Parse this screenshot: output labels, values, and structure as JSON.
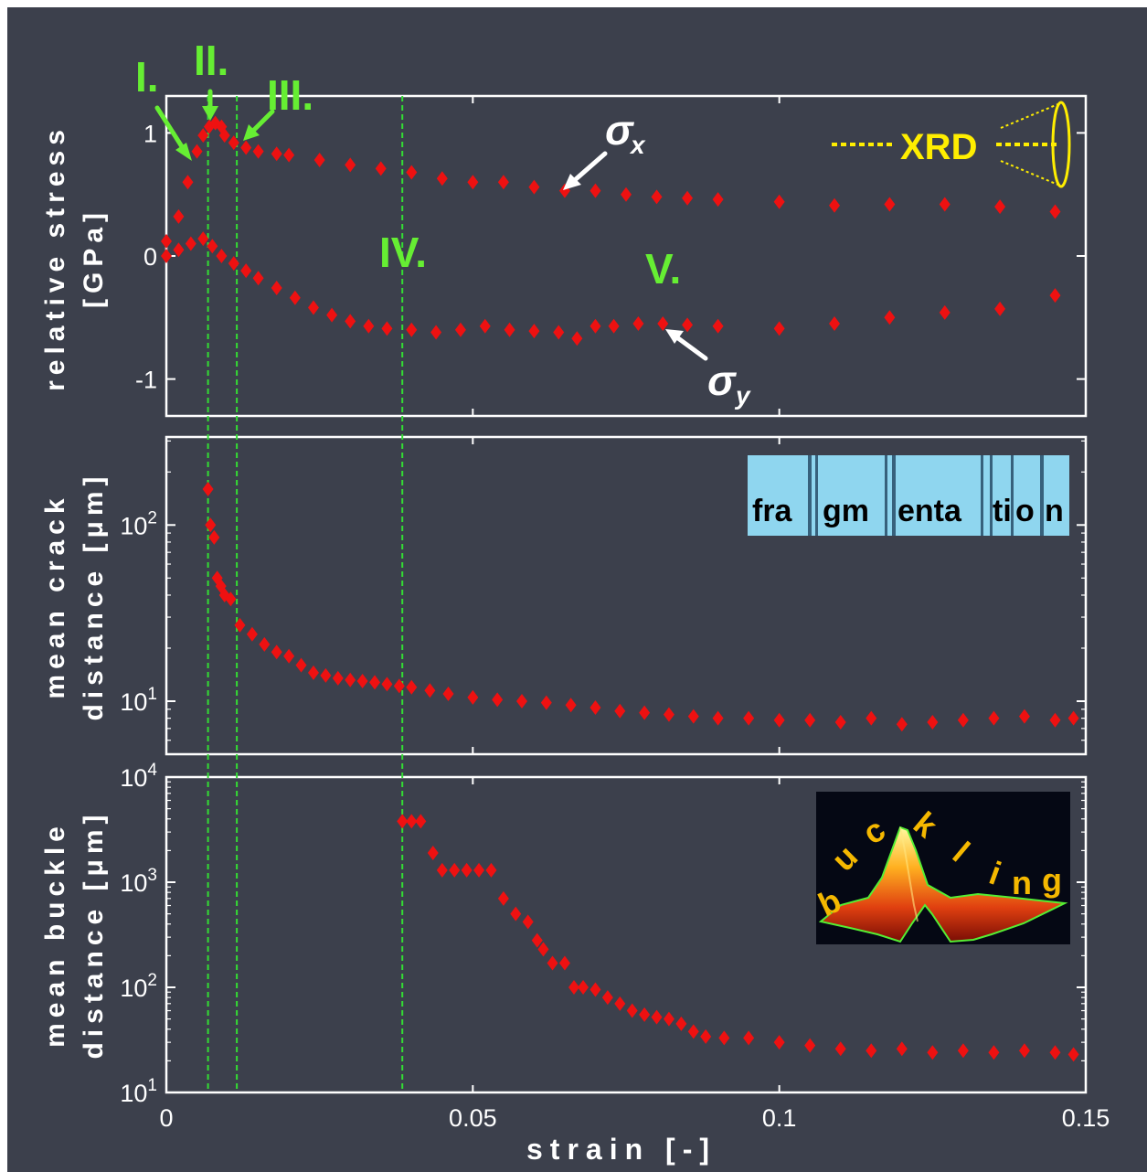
{
  "colors": {
    "background": "#3c404c",
    "frame": "#ffffff",
    "marker": "#ee1111",
    "guide": "#33dd33",
    "roman": "#66ee33",
    "xrd": "#ffee00",
    "frag_inset": "#8fd6ef",
    "buckling_text": "#f5b800"
  },
  "chart_data": [
    {
      "type": "scatter",
      "panel": "stress",
      "ylabel": [
        "relative stress",
        "[GPa]"
      ],
      "ylim": [
        -1.3,
        1.3
      ],
      "yticks": [
        {
          "v": 1,
          "t": "1"
        },
        {
          "v": 0,
          "t": "0"
        },
        {
          "v": -1,
          "t": "-1"
        }
      ],
      "annotations": {
        "sigma_x": "σ",
        "sigma_x_sub": "x",
        "sigma_y": "σ",
        "sigma_y_sub": "y",
        "xrd": "XRD"
      },
      "series": [
        {
          "key": "sigma_x",
          "x": [
            0.0,
            0.002,
            0.0035,
            0.005,
            0.006,
            0.007,
            0.008,
            0.009,
            0.0095,
            0.011,
            0.013,
            0.015,
            0.018,
            0.02,
            0.025,
            0.03,
            0.035,
            0.04,
            0.045,
            0.05,
            0.055,
            0.06,
            0.065,
            0.07,
            0.075,
            0.08,
            0.085,
            0.09,
            0.1,
            0.109,
            0.118,
            0.127,
            0.136,
            0.145
          ],
          "y": [
            0.12,
            0.32,
            0.6,
            0.85,
            0.98,
            1.05,
            1.08,
            1.05,
            0.98,
            0.92,
            0.88,
            0.85,
            0.83,
            0.82,
            0.78,
            0.74,
            0.71,
            0.68,
            0.63,
            0.6,
            0.6,
            0.56,
            0.53,
            0.53,
            0.5,
            0.48,
            0.47,
            0.46,
            0.44,
            0.41,
            0.42,
            0.42,
            0.4,
            0.36
          ]
        },
        {
          "key": "sigma_y",
          "x": [
            0.0,
            0.002,
            0.004,
            0.006,
            0.0075,
            0.009,
            0.011,
            0.013,
            0.015,
            0.018,
            0.021,
            0.024,
            0.027,
            0.03,
            0.033,
            0.036,
            0.04,
            0.044,
            0.048,
            0.052,
            0.056,
            0.06,
            0.064,
            0.067,
            0.07,
            0.073,
            0.077,
            0.081,
            0.085,
            0.09,
            0.1,
            0.109,
            0.118,
            0.127,
            0.136,
            0.145
          ],
          "y": [
            0.0,
            0.05,
            0.1,
            0.14,
            0.08,
            0.0,
            -0.06,
            -0.12,
            -0.18,
            -0.26,
            -0.34,
            -0.42,
            -0.48,
            -0.53,
            -0.57,
            -0.59,
            -0.6,
            -0.62,
            -0.6,
            -0.57,
            -0.6,
            -0.61,
            -0.62,
            -0.67,
            -0.57,
            -0.57,
            -0.55,
            -0.55,
            -0.56,
            -0.57,
            -0.59,
            -0.55,
            -0.5,
            -0.46,
            -0.43,
            -0.32
          ]
        }
      ]
    },
    {
      "type": "scatter",
      "panel": "crack",
      "ylabel": [
        "mean crack",
        "distance [μm]"
      ],
      "yscale": "log",
      "ylim": [
        5,
        316
      ],
      "yticks": [
        {
          "v": 100,
          "b": "10",
          "e": "2"
        },
        {
          "v": 10,
          "b": "10",
          "e": "1"
        }
      ],
      "inset_words": [
        "fra",
        "gm",
        "enta",
        "ti",
        "o",
        "n"
      ],
      "x": [
        0.0068,
        0.0072,
        0.0078,
        0.0083,
        0.0089,
        0.0095,
        0.0105,
        0.012,
        0.014,
        0.016,
        0.018,
        0.02,
        0.022,
        0.024,
        0.026,
        0.028,
        0.03,
        0.032,
        0.034,
        0.036,
        0.038,
        0.04,
        0.043,
        0.046,
        0.05,
        0.054,
        0.058,
        0.062,
        0.066,
        0.07,
        0.074,
        0.078,
        0.082,
        0.086,
        0.09,
        0.095,
        0.1,
        0.105,
        0.11,
        0.115,
        0.12,
        0.125,
        0.13,
        0.135,
        0.14,
        0.145,
        0.148
      ],
      "y": [
        160,
        100,
        85,
        50,
        45,
        40,
        38,
        27,
        24,
        21,
        19,
        18,
        16,
        14.5,
        14,
        13.5,
        13.2,
        13,
        12.8,
        12.5,
        12.2,
        12,
        11.5,
        11,
        10.5,
        10.2,
        10,
        9.8,
        9.5,
        9.2,
        8.8,
        8.6,
        8.4,
        8.2,
        8.0,
        8.0,
        7.8,
        7.8,
        7.6,
        8.0,
        7.4,
        7.6,
        7.8,
        8.0,
        8.2,
        7.8,
        8.0
      ]
    },
    {
      "type": "scatter",
      "panel": "buckle",
      "ylabel": [
        "mean buckle",
        "distance [μm]"
      ],
      "yscale": "log",
      "ylim": [
        10,
        10000
      ],
      "yticks": [
        {
          "v": 10000,
          "b": "10",
          "e": "4"
        },
        {
          "v": 1000,
          "b": "10",
          "e": "3"
        },
        {
          "v": 100,
          "b": "10",
          "e": "2"
        },
        {
          "v": 10,
          "b": "10",
          "e": "1"
        }
      ],
      "inset_text": "buckling",
      "x": [
        0.0385,
        0.04,
        0.0415,
        0.0435,
        0.045,
        0.047,
        0.049,
        0.051,
        0.053,
        0.055,
        0.057,
        0.059,
        0.0605,
        0.0615,
        0.063,
        0.065,
        0.0665,
        0.068,
        0.07,
        0.072,
        0.074,
        0.076,
        0.078,
        0.08,
        0.082,
        0.084,
        0.086,
        0.088,
        0.091,
        0.095,
        0.1,
        0.105,
        0.11,
        0.115,
        0.12,
        0.125,
        0.13,
        0.135,
        0.14,
        0.145,
        0.148
      ],
      "y": [
        3800,
        3800,
        3800,
        1900,
        1300,
        1300,
        1300,
        1300,
        1300,
        700,
        500,
        420,
        280,
        230,
        170,
        170,
        100,
        100,
        95,
        80,
        70,
        60,
        55,
        52,
        50,
        45,
        38,
        34,
        33,
        33,
        30,
        28,
        26,
        25,
        26,
        24,
        25,
        24,
        25,
        24,
        23
      ]
    }
  ],
  "x_axis": {
    "label": "strain  [-]",
    "range": [
      0,
      0.15
    ],
    "ticks": [
      {
        "v": 0,
        "t": "0"
      },
      {
        "v": 0.05,
        "t": "0.05"
      },
      {
        "v": 0.1,
        "t": "0.1"
      },
      {
        "v": 0.15,
        "t": "0.15"
      }
    ]
  },
  "regimes": [
    {
      "label": "I.",
      "strain": 0.0068
    },
    {
      "label": "II.",
      "strain": 0.0068
    },
    {
      "label": "III.",
      "strain": 0.0115
    },
    {
      "label": "IV.",
      "strain": 0.0385
    },
    {
      "label": "V.",
      "strain": 0.0805
    }
  ],
  "guide_lines": [
    0.0068,
    0.0115,
    0.0385
  ]
}
